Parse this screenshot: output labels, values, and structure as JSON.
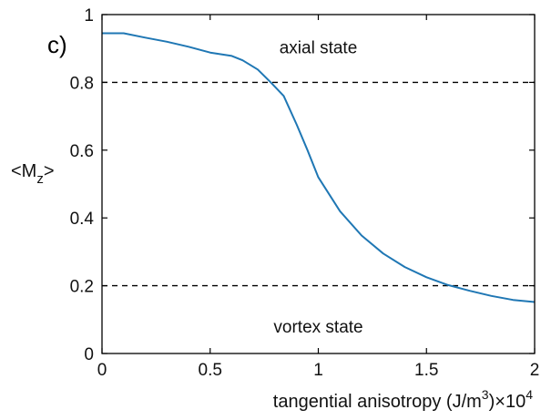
{
  "chart_data": {
    "type": "line",
    "panel_label": "c)",
    "xlabel": {
      "text": "tangential anisotropy (J/m",
      "sup": "3",
      "close": ")",
      "times": "×10",
      "exp": "4"
    },
    "ylabel": {
      "open": "<M",
      "sub": "z",
      "close": ">"
    },
    "xlim": [
      0,
      2
    ],
    "ylim": [
      0,
      1
    ],
    "xticks": [
      "0",
      "0.5",
      "1",
      "1.5",
      "2"
    ],
    "yticks": [
      "0",
      "0.2",
      "0.4",
      "0.6",
      "0.8",
      "1"
    ],
    "grid": false,
    "series": [
      {
        "color": "#1f77b4",
        "x": [
          0,
          0.1,
          0.2,
          0.3,
          0.4,
          0.5,
          0.6,
          0.65,
          0.72,
          0.78,
          0.84,
          0.9,
          0.95,
          1.0,
          1.1,
          1.2,
          1.3,
          1.4,
          1.5,
          1.6,
          1.7,
          1.8,
          1.9,
          2.0
        ],
        "y": [
          0.945,
          0.945,
          0.932,
          0.92,
          0.905,
          0.888,
          0.878,
          0.865,
          0.838,
          0.8,
          0.76,
          0.675,
          0.6,
          0.52,
          0.42,
          0.348,
          0.295,
          0.255,
          0.225,
          0.202,
          0.185,
          0.17,
          0.158,
          0.152
        ]
      }
    ],
    "reference_lines": [
      {
        "y": 0.8,
        "style": "dashed",
        "color": "#000000"
      },
      {
        "y": 0.2,
        "style": "dashed",
        "color": "#000000"
      }
    ],
    "annotations": [
      {
        "text": "axial state",
        "x": 1.0,
        "y": 0.905
      },
      {
        "text": "vortex state",
        "x": 1.0,
        "y": 0.08
      }
    ]
  }
}
